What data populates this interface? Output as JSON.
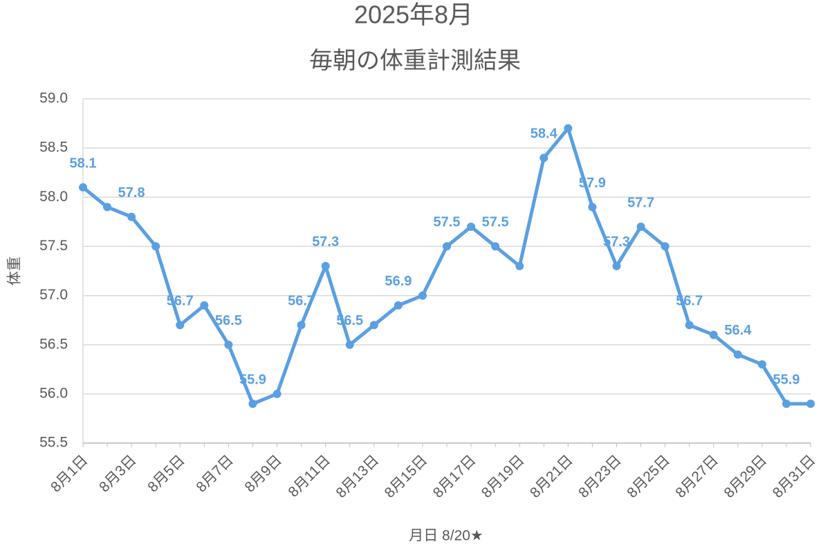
{
  "chart_data": {
    "type": "line",
    "title": "2025年8月",
    "subtitle": "毎朝の体重計測結果",
    "x_label": "月日 8/20★",
    "y_label": "体重",
    "categories": [
      "8月1日",
      null,
      "8月3日",
      null,
      "8月5日",
      null,
      "8月7日",
      null,
      "8月9日",
      null,
      "8月11日",
      null,
      "8月13日",
      null,
      "8月15日",
      null,
      "8月17日",
      null,
      "8月19日",
      null,
      "8月21日",
      null,
      "8月23日",
      null,
      "8月25日",
      null,
      "8月27日",
      null,
      "8月29日",
      null,
      "8月31日"
    ],
    "values": [
      58.1,
      57.9,
      57.8,
      57.5,
      56.7,
      56.9,
      56.5,
      55.9,
      56.0,
      56.7,
      57.3,
      56.5,
      56.7,
      56.9,
      57.0,
      57.5,
      57.7,
      57.5,
      57.3,
      58.4,
      58.7,
      57.9,
      57.3,
      57.7,
      57.5,
      56.7,
      56.6,
      56.4,
      56.3,
      55.9,
      55.9
    ],
    "value_labels": [
      "58.1",
      null,
      "57.8",
      null,
      "56.7",
      null,
      "56.5",
      "55.9",
      null,
      "56.7",
      "57.3",
      "56.5",
      null,
      "56.9",
      null,
      "57.5",
      null,
      "57.5",
      null,
      "58.4",
      null,
      "57.9",
      "57.3",
      "57.7",
      null,
      "56.7",
      null,
      "56.4",
      null,
      "55.9",
      null
    ],
    "color": "#5a9fe2",
    "ylim": [
      55.5,
      59.0
    ],
    "yticks": [
      55.5,
      {
        "value": 56,
        "label": "56.0"
      },
      56.5,
      {
        "value": 57,
        "label": "57.0"
      },
      57.5,
      {
        "value": 58,
        "label": "58.0"
      },
      58.5,
      {
        "value": 59,
        "label": "59.0"
      }
    ],
    "grid": true
  }
}
